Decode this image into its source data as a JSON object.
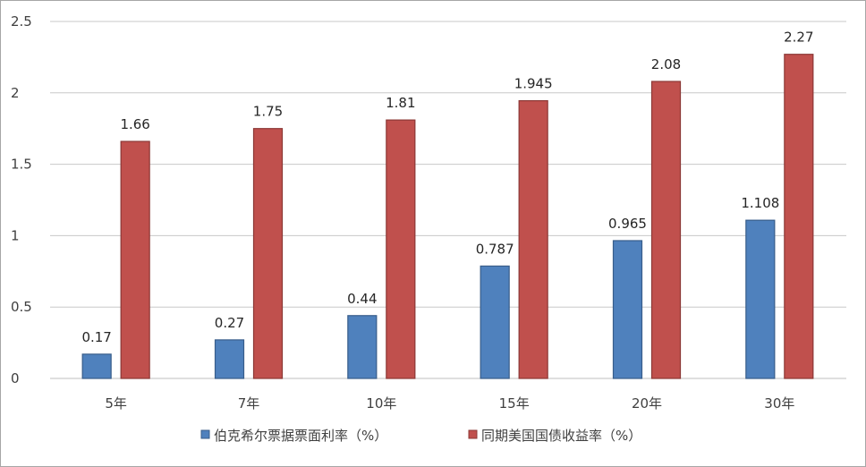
{
  "chart_data": {
    "type": "bar",
    "categories": [
      "5年",
      "7年",
      "10年",
      "15年",
      "20年",
      "30年"
    ],
    "series": [
      {
        "name": "伯克希尔票据票面利率（%）",
        "values": [
          0.17,
          0.27,
          0.44,
          0.787,
          0.965,
          1.108
        ],
        "labels": [
          "0.17",
          "0.27",
          "0.44",
          "0.787",
          "0.965",
          "1.108"
        ],
        "color": "#4f81bd",
        "edge": "#385d8a"
      },
      {
        "name": "同期美国国债收益率（%）",
        "values": [
          1.66,
          1.75,
          1.81,
          1.945,
          2.08,
          2.27
        ],
        "labels": [
          "1.66",
          "1.75",
          "1.81",
          "1.945",
          "2.08",
          "2.27"
        ],
        "color": "#c0504d",
        "edge": "#8c3836"
      }
    ],
    "ylim": [
      0,
      2.5
    ],
    "yticks": [
      "0",
      "0.5",
      "1",
      "1.5",
      "2",
      "2.5"
    ],
    "grid": true,
    "legend_position": "bottom",
    "title": "",
    "xlabel": "",
    "ylabel": ""
  }
}
